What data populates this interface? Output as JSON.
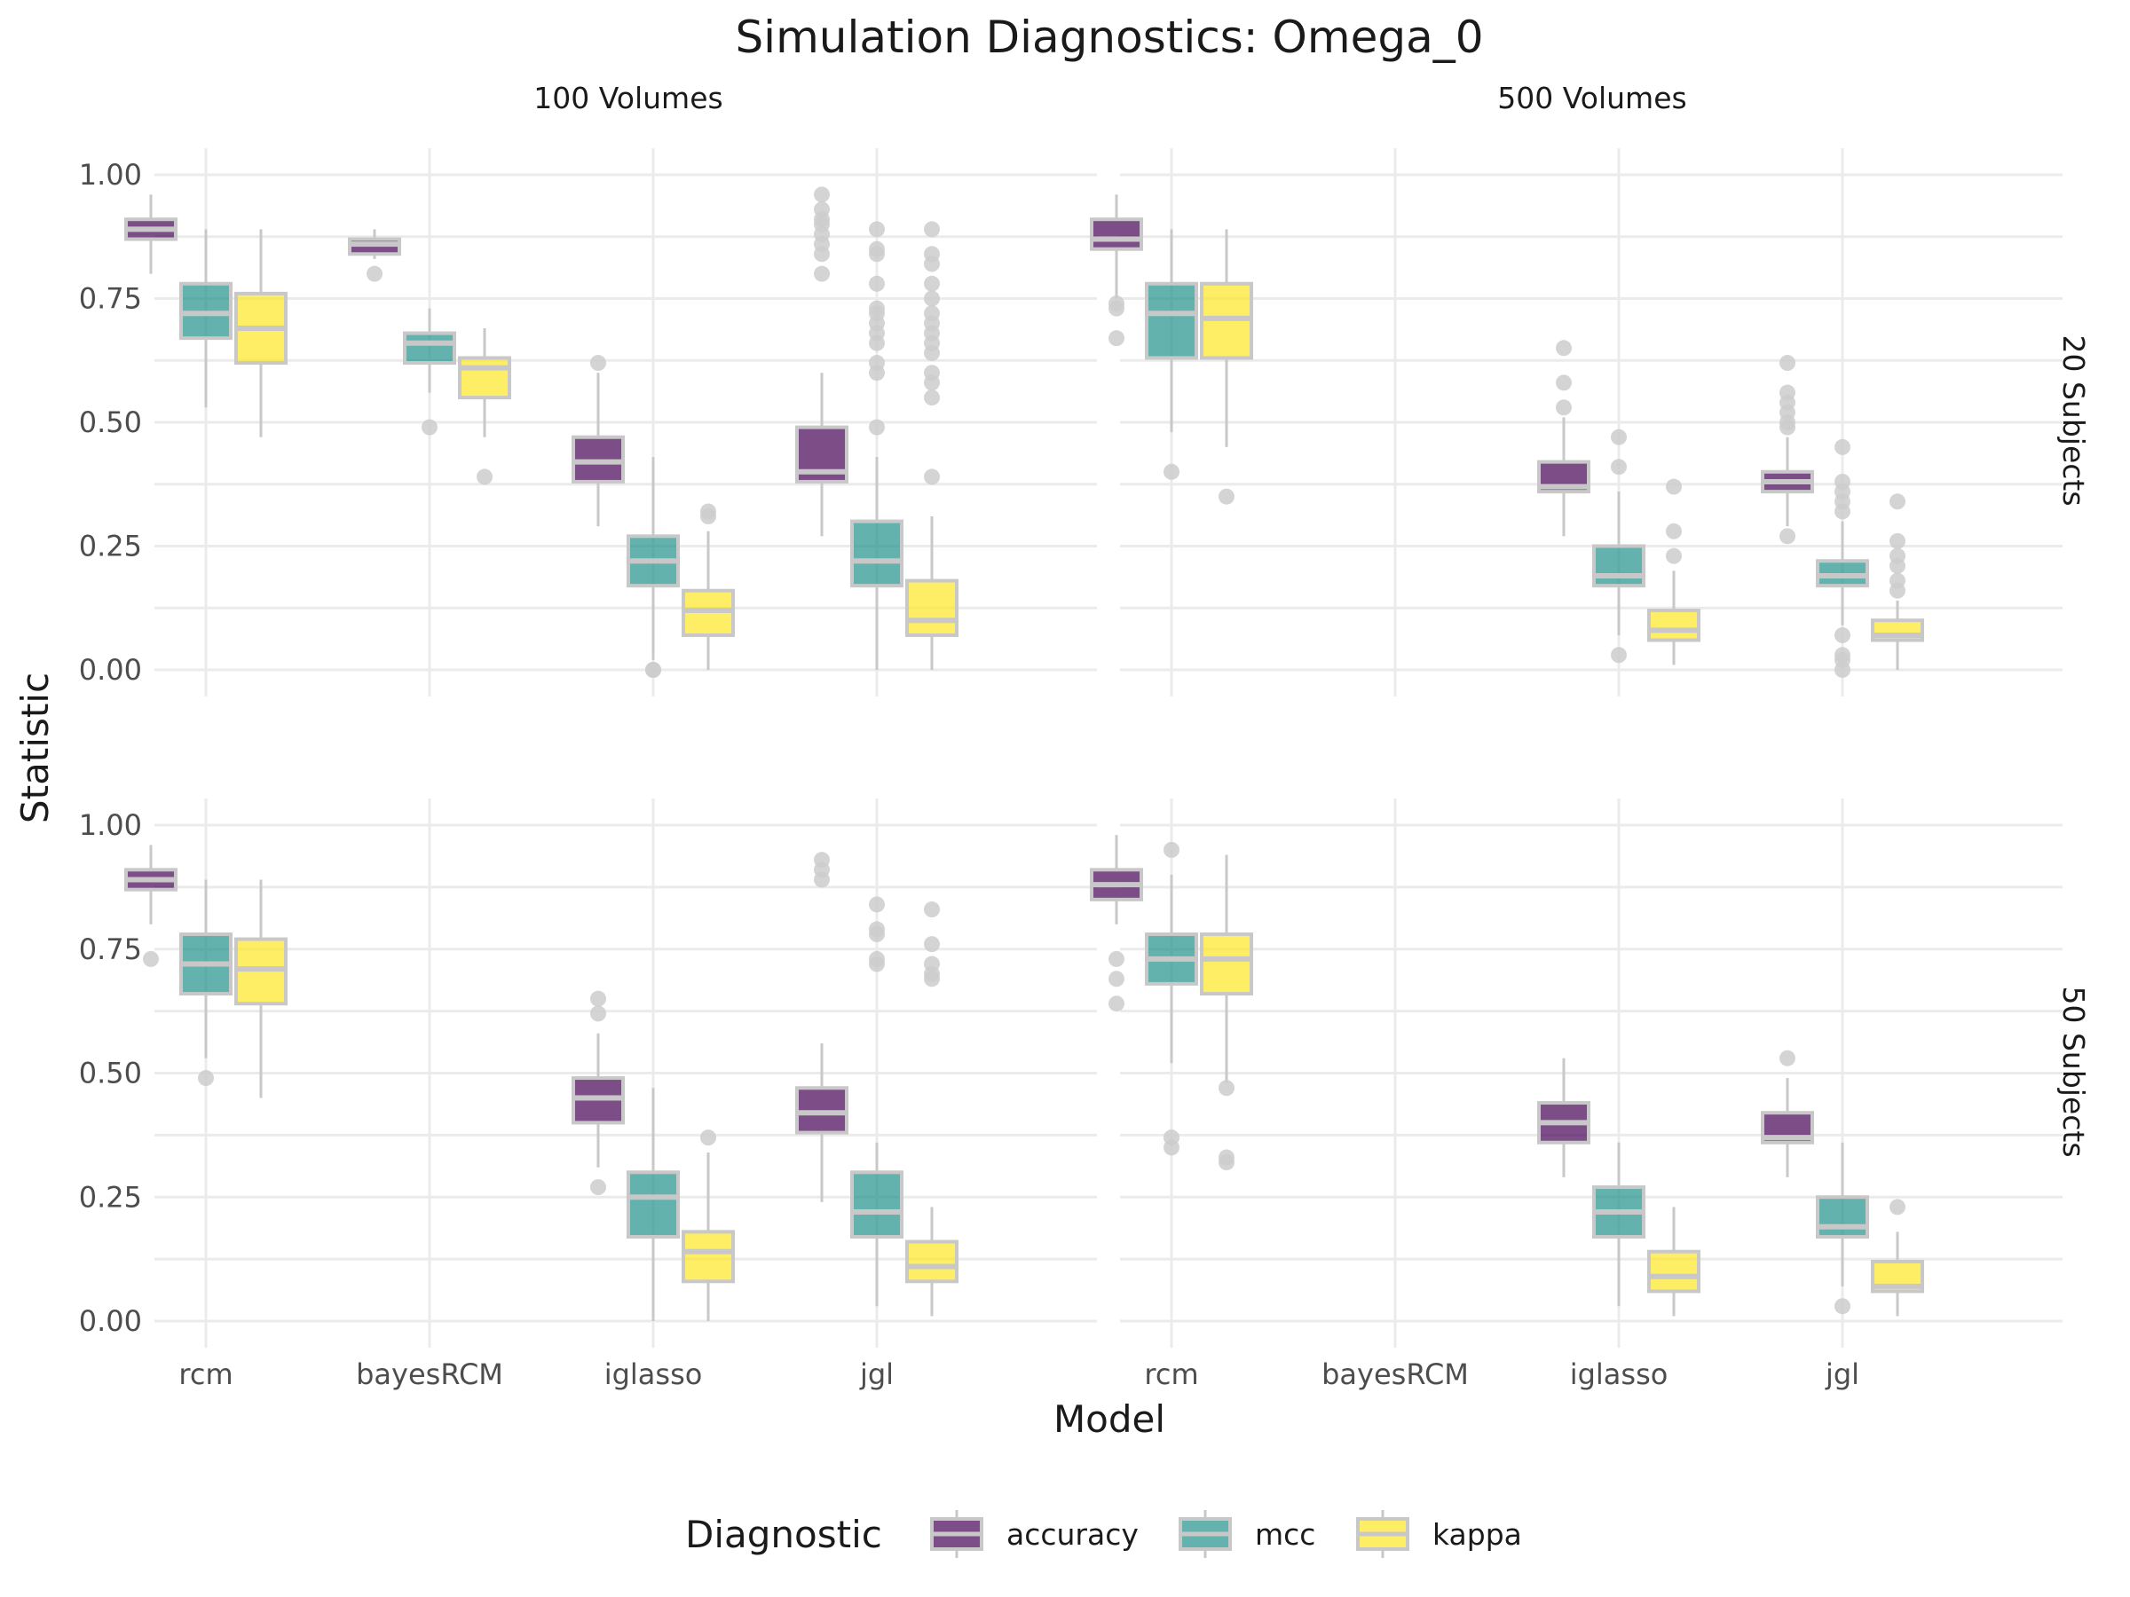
{
  "chart_data": {
    "type": "boxplot",
    "title": "Simulation Diagnostics: Omega_0",
    "xlabel": "Model",
    "ylabel": "Statistic",
    "ylim": [
      0,
      1
    ],
    "y_ticks": [
      "0.00",
      "0.25",
      "0.50",
      "0.75",
      "1.00"
    ],
    "categories": [
      "rcm",
      "bayesRCM",
      "iglasso",
      "jgl"
    ],
    "column_facets": [
      "100 Volumes",
      "500 Volumes"
    ],
    "row_facets": [
      "20 Subjects",
      "50 Subjects"
    ],
    "legend": {
      "title": "Diagnostic",
      "position": "bottom",
      "items": [
        {
          "name": "accuracy",
          "color": "#440154"
        },
        {
          "name": "mcc",
          "color": "#21918c"
        },
        {
          "name": "kappa",
          "color": "#fde725"
        }
      ]
    },
    "panels": [
      {
        "column": "100 Volumes",
        "row": "20 Subjects",
        "boxes": [
          {
            "model": "rcm",
            "diagnostic": "accuracy",
            "whisker_low": 0.8,
            "q1": 0.87,
            "median": 0.89,
            "q3": 0.91,
            "whisker_high": 0.96,
            "outliers": []
          },
          {
            "model": "rcm",
            "diagnostic": "mcc",
            "whisker_low": 0.53,
            "q1": 0.67,
            "median": 0.72,
            "q3": 0.78,
            "whisker_high": 0.89,
            "outliers": []
          },
          {
            "model": "rcm",
            "diagnostic": "kappa",
            "whisker_low": 0.47,
            "q1": 0.62,
            "median": 0.69,
            "q3": 0.76,
            "whisker_high": 0.89,
            "outliers": []
          },
          {
            "model": "bayesRCM",
            "diagnostic": "accuracy",
            "whisker_low": 0.83,
            "q1": 0.84,
            "median": 0.86,
            "q3": 0.87,
            "whisker_high": 0.89,
            "outliers": [
              0.8
            ]
          },
          {
            "model": "bayesRCM",
            "diagnostic": "mcc",
            "whisker_low": 0.56,
            "q1": 0.62,
            "median": 0.66,
            "q3": 0.68,
            "whisker_high": 0.73,
            "outliers": [
              0.49
            ]
          },
          {
            "model": "bayesRCM",
            "diagnostic": "kappa",
            "whisker_low": 0.47,
            "q1": 0.55,
            "median": 0.61,
            "q3": 0.63,
            "whisker_high": 0.69,
            "outliers": [
              0.39
            ]
          },
          {
            "model": "iglasso",
            "diagnostic": "accuracy",
            "whisker_low": 0.29,
            "q1": 0.38,
            "median": 0.42,
            "q3": 0.47,
            "whisker_high": 0.6,
            "outliers": [
              0.62
            ]
          },
          {
            "model": "iglasso",
            "diagnostic": "mcc",
            "whisker_low": 0.02,
            "q1": 0.17,
            "median": 0.22,
            "q3": 0.27,
            "whisker_high": 0.43,
            "outliers": [
              0.0,
              0.0
            ]
          },
          {
            "model": "iglasso",
            "diagnostic": "kappa",
            "whisker_low": 0.0,
            "q1": 0.07,
            "median": 0.12,
            "q3": 0.16,
            "whisker_high": 0.28,
            "outliers": [
              0.31,
              0.32
            ]
          },
          {
            "model": "jgl",
            "diagnostic": "accuracy",
            "whisker_low": 0.27,
            "q1": 0.38,
            "median": 0.4,
            "q3": 0.49,
            "whisker_high": 0.6,
            "outliers": [
              0.8,
              0.84,
              0.86,
              0.88,
              0.9,
              0.91,
              0.93,
              0.96
            ]
          },
          {
            "model": "jgl",
            "diagnostic": "mcc",
            "whisker_low": 0.0,
            "q1": 0.17,
            "median": 0.22,
            "q3": 0.3,
            "whisker_high": 0.43,
            "outliers": [
              0.49,
              0.6,
              0.62,
              0.66,
              0.68,
              0.7,
              0.72,
              0.73,
              0.78,
              0.84,
              0.85,
              0.89
            ]
          },
          {
            "model": "jgl",
            "diagnostic": "kappa",
            "whisker_low": 0.0,
            "q1": 0.07,
            "median": 0.1,
            "q3": 0.18,
            "whisker_high": 0.31,
            "outliers": [
              0.39,
              0.55,
              0.58,
              0.6,
              0.64,
              0.66,
              0.68,
              0.7,
              0.72,
              0.75,
              0.78,
              0.82,
              0.84,
              0.89
            ]
          }
        ]
      },
      {
        "column": "500 Volumes",
        "row": "20 Subjects",
        "boxes": [
          {
            "model": "rcm",
            "diagnostic": "accuracy",
            "whisker_low": 0.75,
            "q1": 0.85,
            "median": 0.87,
            "q3": 0.91,
            "whisker_high": 0.96,
            "outliers": [
              0.67,
              0.73,
              0.74
            ]
          },
          {
            "model": "rcm",
            "diagnostic": "mcc",
            "whisker_low": 0.48,
            "q1": 0.63,
            "median": 0.72,
            "q3": 0.78,
            "whisker_high": 0.89,
            "outliers": [
              0.4
            ]
          },
          {
            "model": "rcm",
            "diagnostic": "kappa",
            "whisker_low": 0.45,
            "q1": 0.63,
            "median": 0.71,
            "q3": 0.78,
            "whisker_high": 0.89,
            "outliers": [
              0.35
            ]
          },
          {
            "model": "iglasso",
            "diagnostic": "accuracy",
            "whisker_low": 0.27,
            "q1": 0.36,
            "median": 0.37,
            "q3": 0.42,
            "whisker_high": 0.51,
            "outliers": [
              0.53,
              0.58,
              0.65
            ]
          },
          {
            "model": "iglasso",
            "diagnostic": "mcc",
            "whisker_low": 0.07,
            "q1": 0.17,
            "median": 0.19,
            "q3": 0.25,
            "whisker_high": 0.36,
            "outliers": [
              0.03,
              0.41,
              0.47
            ]
          },
          {
            "model": "iglasso",
            "diagnostic": "kappa",
            "whisker_low": 0.01,
            "q1": 0.06,
            "median": 0.08,
            "q3": 0.12,
            "whisker_high": 0.2,
            "outliers": [
              0.23,
              0.28,
              0.37
            ]
          },
          {
            "model": "jgl",
            "diagnostic": "accuracy",
            "whisker_low": 0.29,
            "q1": 0.36,
            "median": 0.38,
            "q3": 0.4,
            "whisker_high": 0.47,
            "outliers": [
              0.27,
              0.49,
              0.5,
              0.52,
              0.54,
              0.56,
              0.62
            ]
          },
          {
            "model": "jgl",
            "diagnostic": "mcc",
            "whisker_low": 0.09,
            "q1": 0.17,
            "median": 0.19,
            "q3": 0.22,
            "whisker_high": 0.3,
            "outliers": [
              0.0,
              0.02,
              0.03,
              0.07,
              0.32,
              0.34,
              0.36,
              0.38,
              0.45
            ]
          },
          {
            "model": "jgl",
            "diagnostic": "kappa",
            "whisker_low": 0.0,
            "q1": 0.06,
            "median": 0.07,
            "q3": 0.1,
            "whisker_high": 0.14,
            "outliers": [
              0.16,
              0.18,
              0.21,
              0.23,
              0.26,
              0.34
            ]
          }
        ]
      },
      {
        "column": "100 Volumes",
        "row": "50 Subjects",
        "boxes": [
          {
            "model": "rcm",
            "diagnostic": "accuracy",
            "whisker_low": 0.8,
            "q1": 0.87,
            "median": 0.89,
            "q3": 0.91,
            "whisker_high": 0.96,
            "outliers": [
              0.73
            ]
          },
          {
            "model": "rcm",
            "diagnostic": "mcc",
            "whisker_low": 0.53,
            "q1": 0.66,
            "median": 0.72,
            "q3": 0.78,
            "whisker_high": 0.89,
            "outliers": [
              0.49
            ]
          },
          {
            "model": "rcm",
            "diagnostic": "kappa",
            "whisker_low": 0.45,
            "q1": 0.64,
            "median": 0.71,
            "q3": 0.77,
            "whisker_high": 0.89,
            "outliers": []
          },
          {
            "model": "iglasso",
            "diagnostic": "accuracy",
            "whisker_low": 0.31,
            "q1": 0.4,
            "median": 0.45,
            "q3": 0.49,
            "whisker_high": 0.58,
            "outliers": [
              0.27,
              0.62,
              0.65
            ]
          },
          {
            "model": "iglasso",
            "diagnostic": "mcc",
            "whisker_low": 0.0,
            "q1": 0.17,
            "median": 0.25,
            "q3": 0.3,
            "whisker_high": 0.47,
            "outliers": []
          },
          {
            "model": "iglasso",
            "diagnostic": "kappa",
            "whisker_low": 0.0,
            "q1": 0.08,
            "median": 0.14,
            "q3": 0.18,
            "whisker_high": 0.34,
            "outliers": [
              0.37
            ]
          },
          {
            "model": "jgl",
            "diagnostic": "accuracy",
            "whisker_low": 0.24,
            "q1": 0.38,
            "median": 0.42,
            "q3": 0.47,
            "whisker_high": 0.56,
            "outliers": [
              0.89,
              0.91,
              0.93
            ]
          },
          {
            "model": "jgl",
            "diagnostic": "mcc",
            "whisker_low": 0.03,
            "q1": 0.17,
            "median": 0.22,
            "q3": 0.3,
            "whisker_high": 0.36,
            "outliers": [
              0.72,
              0.73,
              0.78,
              0.79,
              0.84
            ]
          },
          {
            "model": "jgl",
            "diagnostic": "kappa",
            "whisker_low": 0.01,
            "q1": 0.08,
            "median": 0.11,
            "q3": 0.16,
            "whisker_high": 0.23,
            "outliers": [
              0.69,
              0.7,
              0.72,
              0.76,
              0.83
            ]
          }
        ]
      },
      {
        "column": "500 Volumes",
        "row": "50 Subjects",
        "boxes": [
          {
            "model": "rcm",
            "diagnostic": "accuracy",
            "whisker_low": 0.8,
            "q1": 0.85,
            "median": 0.88,
            "q3": 0.91,
            "whisker_high": 0.98,
            "outliers": [
              0.64,
              0.69,
              0.73
            ]
          },
          {
            "model": "rcm",
            "diagnostic": "mcc",
            "whisker_low": 0.52,
            "q1": 0.68,
            "median": 0.73,
            "q3": 0.78,
            "whisker_high": 0.9,
            "outliers": [
              0.35,
              0.37,
              0.95
            ]
          },
          {
            "model": "rcm",
            "diagnostic": "kappa",
            "whisker_low": 0.48,
            "q1": 0.66,
            "median": 0.73,
            "q3": 0.78,
            "whisker_high": 0.94,
            "outliers": [
              0.32,
              0.33,
              0.47
            ]
          },
          {
            "model": "iglasso",
            "diagnostic": "accuracy",
            "whisker_low": 0.29,
            "q1": 0.36,
            "median": 0.4,
            "q3": 0.44,
            "whisker_high": 0.53,
            "outliers": []
          },
          {
            "model": "iglasso",
            "diagnostic": "mcc",
            "whisker_low": 0.03,
            "q1": 0.17,
            "median": 0.22,
            "q3": 0.27,
            "whisker_high": 0.36,
            "outliers": []
          },
          {
            "model": "iglasso",
            "diagnostic": "kappa",
            "whisker_low": 0.01,
            "q1": 0.06,
            "median": 0.09,
            "q3": 0.14,
            "whisker_high": 0.23,
            "outliers": []
          },
          {
            "model": "jgl",
            "diagnostic": "accuracy",
            "whisker_low": 0.29,
            "q1": 0.36,
            "median": 0.37,
            "q3": 0.42,
            "whisker_high": 0.49,
            "outliers": [
              0.53
            ]
          },
          {
            "model": "jgl",
            "diagnostic": "mcc",
            "whisker_low": 0.07,
            "q1": 0.17,
            "median": 0.19,
            "q3": 0.25,
            "whisker_high": 0.36,
            "outliers": [
              0.03
            ]
          },
          {
            "model": "jgl",
            "diagnostic": "kappa",
            "whisker_low": 0.01,
            "q1": 0.06,
            "median": 0.07,
            "q3": 0.12,
            "whisker_high": 0.18,
            "outliers": [
              0.23
            ]
          }
        ]
      }
    ]
  }
}
